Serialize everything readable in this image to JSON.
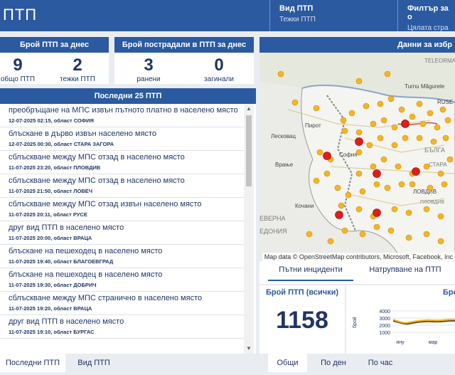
{
  "header": {
    "title": "ПТП",
    "type_filter": {
      "label": "Вид ПТП",
      "value": "Тежки ПТП"
    },
    "filter": {
      "label": "Филтър за о",
      "value": "Цялата стра"
    }
  },
  "today_card": {
    "title": "Брой ПТП за днес",
    "total": {
      "value": "9",
      "label": "общо ПТП"
    },
    "serious": {
      "value": "2",
      "label": "тежки ПТП"
    }
  },
  "victims_card": {
    "title": "Брой пострадали в ПТП за днес",
    "injured": {
      "value": "3",
      "label": "ранени"
    },
    "dead": {
      "value": "0",
      "label": "загинали"
    }
  },
  "list": {
    "title": "Последни 25 ПТП",
    "items": [
      {
        "text": "преобръщане на МПС извън пътното платно в населено място",
        "meta": "12-07-2025 02:15, област СОФИЯ"
      },
      {
        "text": "блъскане в дърво извън населено място",
        "meta": "12-07-2025 00:30, област СТАРА ЗАГОРА"
      },
      {
        "text": "сблъскване между МПС отзад в населено място",
        "meta": "11-07-2025 23:20, област ПЛОВДИВ"
      },
      {
        "text": "сблъскване между МПС отзад в населено място",
        "meta": "11-07-2025 21:50, област ЛОВЕЧ"
      },
      {
        "text": "сблъскване между МПС отзад извън населено място",
        "meta": "11-07-2025 20:11, област РУСЕ"
      },
      {
        "text": "друг вид ПТП в населено място",
        "meta": "11-07-2025 20:00, област ВРАЦА"
      },
      {
        "text": "блъскане на пешеходец в населено място",
        "meta": "11-07-2025 19:40, област БЛАГОЕВГРАД"
      },
      {
        "text": "блъскане на пешеходец в населено място",
        "meta": "11-07-2025 19:30, област ДОБРИЧ"
      },
      {
        "text": "сблъскване между МПС странично в населено място",
        "meta": "11-07-2025 19:20, област ВРАЦА"
      },
      {
        "text": "друг вид ПТП в населено място",
        "meta": "11-07-2025 19:10, област БУРГАС"
      }
    ]
  },
  "bottom_tabs": {
    "tab1": "Последни ПТП",
    "tab2": "Вид ПТП"
  },
  "map": {
    "title": "Данни за избр",
    "attribution": "Map data © OpenStreetMap contributors, Microsoft, Facebook, Inc",
    "labels": {
      "teleorman": "TELEORMAN",
      "magurele": "Turnu Măgurele",
      "pirot": "Пирот",
      "leskovac": "Лесковац",
      "vranje": "Врање",
      "kochani": "Кочани",
      "bulgaria": "БЪЛГА",
      "severna": "ЕВЕРНА",
      "makedonia": "ЕДОНИЯ",
      "plovdiv": "ЛОВДИВ",
      "stara": "СТАРА",
      "plovdiv2": "ПЛОВДИВ",
      "sofia": "София",
      "rousse": "RUSE"
    }
  },
  "sub_tabs": {
    "incidents": "Пътни инциденти",
    "traffic": "Натрупване на ПТП"
  },
  "count_card": {
    "label": "Брой ПТП (всички)",
    "value": "1158"
  },
  "trend_card": {
    "label": "Бро",
    "ylabel": "брой",
    "yticks": [
      "4000",
      "3000",
      "2000",
      "1000"
    ],
    "xticks": [
      "яну",
      "мар"
    ]
  },
  "bottom_tabs2": {
    "general": "Общи",
    "by_day": "По ден",
    "by_hour": "По час"
  },
  "colors": {
    "accent": "#2b5aa1",
    "marker": "#f5b622",
    "severe": "#e01d1d"
  }
}
